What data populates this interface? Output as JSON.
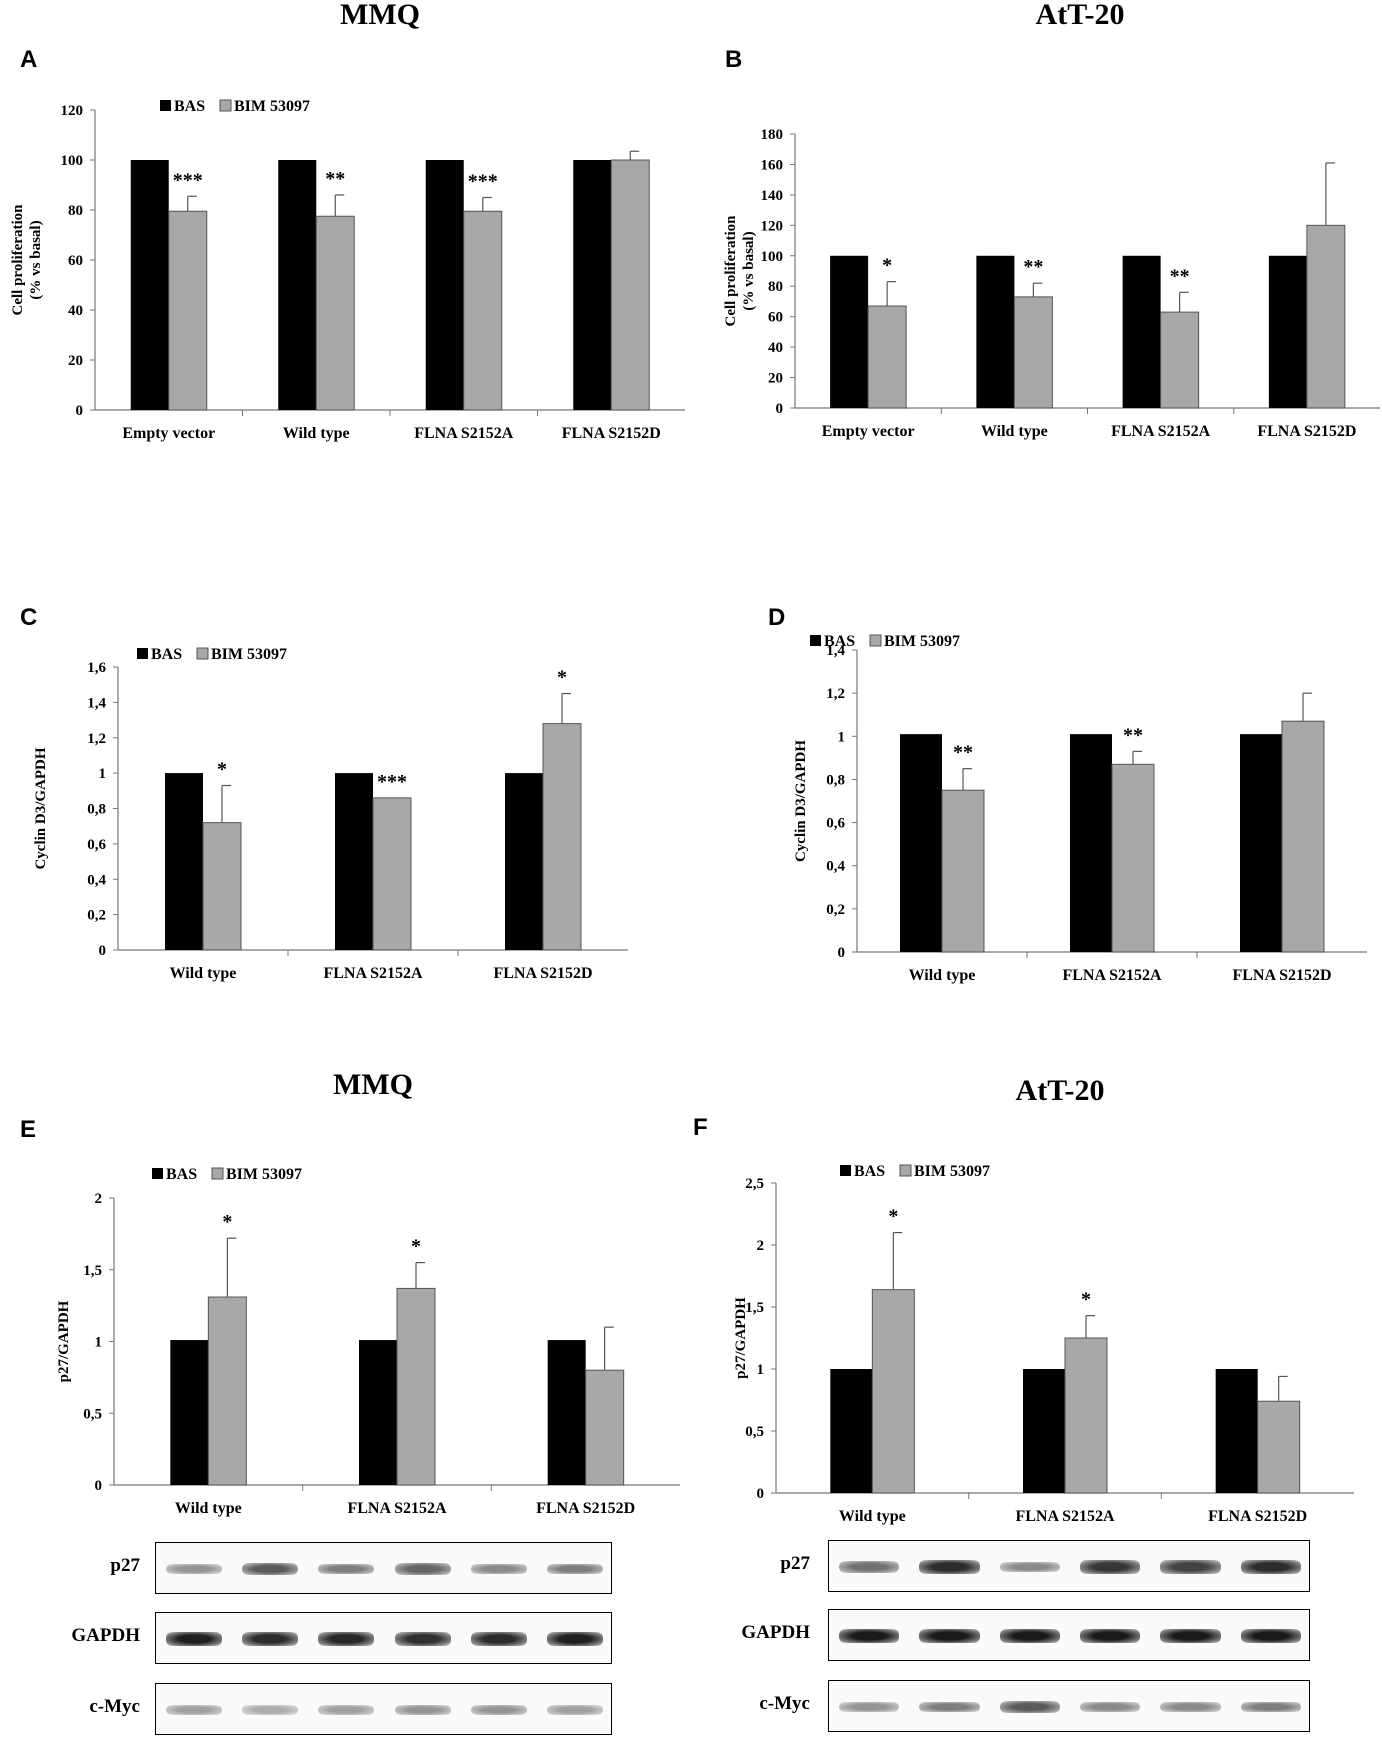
{
  "headings": {
    "top_left": "MMQ",
    "top_right": "AtT-20",
    "bottom_left": "MMQ",
    "bottom_right": "AtT-20"
  },
  "colors": {
    "bas": "#000000",
    "bim": "#a8a8a8",
    "axis": "#777777"
  },
  "chart_data": [
    {
      "id": "A",
      "type": "bar",
      "panel_label": "A",
      "ylabel_lines": [
        "Cell proliferation",
        "(% vs basal)"
      ],
      "legend": [
        "BAS",
        "BIM 53097"
      ],
      "legend_position": "top-left",
      "categories": [
        "Empty vector",
        "Wild type",
        "FLNA S2152A",
        "FLNA S2152D"
      ],
      "ylim": [
        0,
        120
      ],
      "yticks": [
        "0",
        "20",
        "40",
        "60",
        "80",
        "100",
        "120"
      ],
      "ytick_values": [
        0,
        20,
        40,
        60,
        80,
        100,
        120
      ],
      "series": [
        {
          "name": "BAS",
          "values": [
            100,
            100,
            100,
            100
          ],
          "errors": [
            0,
            0,
            0,
            0
          ]
        },
        {
          "name": "BIM 53097",
          "values": [
            79.5,
            77.5,
            79.5,
            100
          ],
          "errors": [
            6,
            8.5,
            5.5,
            3.5
          ]
        }
      ],
      "significance": [
        "***",
        "**",
        "***",
        ""
      ]
    },
    {
      "id": "B",
      "type": "bar",
      "panel_label": "B",
      "ylabel_lines": [
        "Cell proliferation",
        "(% vs basal)"
      ],
      "legend": [],
      "legend_position": "none",
      "categories": [
        "Empty vector",
        "Wild type",
        "FLNA S2152A",
        "FLNA S2152D"
      ],
      "ylim": [
        0,
        180
      ],
      "yticks": [
        "0",
        "20",
        "40",
        "60",
        "80",
        "100",
        "120",
        "140",
        "160",
        "180"
      ],
      "ytick_values": [
        0,
        20,
        40,
        60,
        80,
        100,
        120,
        140,
        160,
        180
      ],
      "series": [
        {
          "name": "BAS",
          "values": [
            100,
            100,
            100,
            100
          ],
          "errors": [
            0,
            0,
            0,
            0
          ]
        },
        {
          "name": "BIM 53097",
          "values": [
            67,
            73,
            63,
            120
          ],
          "errors": [
            16,
            9,
            13,
            41
          ]
        }
      ],
      "significance": [
        "*",
        "**",
        "**",
        ""
      ]
    },
    {
      "id": "C",
      "type": "bar",
      "panel_label": "C",
      "ylabel_lines": [
        "Cyclin D3/GAPDH"
      ],
      "legend": [
        "BAS",
        "BIM 53097"
      ],
      "legend_position": "top-left",
      "categories": [
        "Wild type",
        "FLNA S2152A",
        "FLNA S2152D"
      ],
      "ylim": [
        0,
        1.6
      ],
      "yticks": [
        "0",
        "0,2",
        "0,4",
        "0,6",
        "0,8",
        "1",
        "1,2",
        "1,4",
        "1,6"
      ],
      "ytick_values": [
        0,
        0.2,
        0.4,
        0.6,
        0.8,
        1,
        1.2,
        1.4,
        1.6
      ],
      "series": [
        {
          "name": "BAS",
          "values": [
            1,
            1,
            1
          ],
          "errors": [
            0,
            0,
            0
          ]
        },
        {
          "name": "BIM 53097",
          "values": [
            0.72,
            0.86,
            1.28
          ],
          "errors": [
            0.21,
            0,
            0.17
          ]
        }
      ],
      "significance": [
        "*",
        "***",
        "*"
      ]
    },
    {
      "id": "D",
      "type": "bar",
      "panel_label": "D",
      "ylabel_lines": [
        "Cyclin D3/GAPDH"
      ],
      "legend": [
        "BAS",
        "BIM 53097"
      ],
      "legend_position": "top-left",
      "categories": [
        "Wild type",
        "FLNA S2152A",
        "FLNA S2152D"
      ],
      "ylim": [
        0,
        1.4
      ],
      "yticks": [
        "0",
        "0,2",
        "0,4",
        "0,6",
        "0,8",
        "1",
        "1,2",
        "1,4"
      ],
      "ytick_values": [
        0,
        0.2,
        0.4,
        0.6,
        0.8,
        1,
        1.2,
        1.4
      ],
      "series": [
        {
          "name": "BAS",
          "values": [
            1.01,
            1.01,
            1.01
          ],
          "errors": [
            0,
            0,
            0
          ]
        },
        {
          "name": "BIM 53097",
          "values": [
            0.75,
            0.87,
            1.07
          ],
          "errors": [
            0.1,
            0.06,
            0.13
          ]
        }
      ],
      "significance": [
        "**",
        "**",
        ""
      ]
    },
    {
      "id": "E",
      "type": "bar",
      "panel_label": "E",
      "ylabel_lines": [
        "p27/GAPDH"
      ],
      "legend": [
        "BAS",
        "BIM 53097"
      ],
      "legend_position": "top-left",
      "categories": [
        "Wild type",
        "FLNA S2152A",
        "FLNA S2152D"
      ],
      "ylim": [
        0,
        2
      ],
      "yticks": [
        "0",
        "0,5",
        "1",
        "1,5",
        "2"
      ],
      "ytick_values": [
        0,
        0.5,
        1,
        1.5,
        2
      ],
      "series": [
        {
          "name": "BAS",
          "values": [
            1.01,
            1.01,
            1.01
          ],
          "errors": [
            0,
            0,
            0
          ]
        },
        {
          "name": "BIM 53097",
          "values": [
            1.31,
            1.37,
            0.8
          ],
          "errors": [
            0.41,
            0.18,
            0.3
          ]
        }
      ],
      "significance": [
        "*",
        "*",
        ""
      ]
    },
    {
      "id": "F",
      "type": "bar",
      "panel_label": "F",
      "ylabel_lines": [
        "p27/GAPDH"
      ],
      "legend": [
        "BAS",
        "BIM 53097"
      ],
      "legend_position": "top-left",
      "categories": [
        "Wild type",
        "FLNA S2152A",
        "FLNA S2152D"
      ],
      "ylim": [
        0,
        2.5
      ],
      "yticks": [
        "0",
        "0,5",
        "1",
        "1,5",
        "2",
        "2,5"
      ],
      "ytick_values": [
        0,
        0.5,
        1,
        1.5,
        2,
        2.5
      ],
      "series": [
        {
          "name": "BAS",
          "values": [
            1,
            1,
            1
          ],
          "errors": [
            0,
            0,
            0
          ]
        },
        {
          "name": "BIM 53097",
          "values": [
            1.64,
            1.25,
            0.74
          ],
          "errors": [
            0.46,
            0.18,
            0.2
          ]
        }
      ],
      "significance": [
        "*",
        "*",
        ""
      ]
    }
  ],
  "blots": {
    "left": {
      "rows": [
        {
          "label": "p27",
          "intensities": [
            0.45,
            0.7,
            0.55,
            0.65,
            0.5,
            0.55
          ]
        },
        {
          "label": "GAPDH",
          "intensities": [
            0.95,
            0.9,
            0.92,
            0.88,
            0.9,
            0.95
          ]
        },
        {
          "label": "c-Myc",
          "intensities": [
            0.4,
            0.35,
            0.4,
            0.45,
            0.45,
            0.4
          ]
        }
      ]
    },
    "right": {
      "rows": [
        {
          "label": "p27",
          "intensities": [
            0.6,
            0.9,
            0.5,
            0.85,
            0.8,
            0.9
          ]
        },
        {
          "label": "GAPDH",
          "intensities": [
            0.98,
            0.98,
            0.98,
            0.98,
            0.98,
            0.98
          ]
        },
        {
          "label": "c-Myc",
          "intensities": [
            0.45,
            0.55,
            0.7,
            0.5,
            0.5,
            0.55
          ]
        }
      ]
    }
  }
}
